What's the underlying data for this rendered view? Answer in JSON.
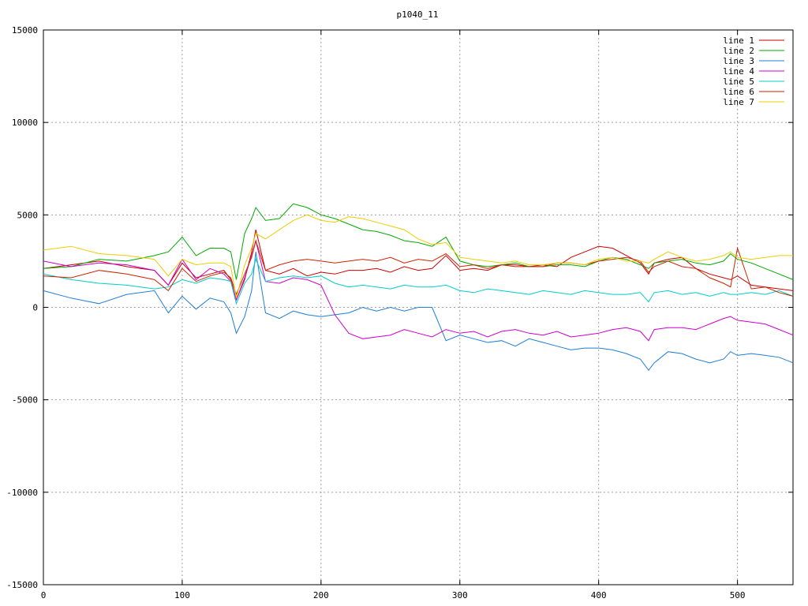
{
  "chart_data": {
    "type": "line",
    "title": "p1040_11",
    "xlabel": "",
    "ylabel": "",
    "xlim": [
      0,
      540
    ],
    "ylim": [
      -15000,
      15000
    ],
    "x_ticks": [
      0,
      100,
      200,
      300,
      400,
      500
    ],
    "y_ticks": [
      -15000,
      -10000,
      -5000,
      0,
      5000,
      10000,
      15000
    ],
    "grid": true,
    "legend_position": "top-right",
    "x": [
      0,
      20,
      40,
      60,
      80,
      90,
      100,
      110,
      120,
      130,
      135,
      139,
      145,
      150,
      153,
      160,
      170,
      180,
      190,
      200,
      210,
      220,
      230,
      240,
      250,
      260,
      270,
      280,
      290,
      300,
      310,
      320,
      330,
      340,
      350,
      360,
      370,
      380,
      390,
      400,
      410,
      420,
      430,
      436,
      440,
      450,
      460,
      470,
      480,
      490,
      495,
      500,
      510,
      520,
      530,
      540
    ],
    "series": [
      {
        "name": "line 1",
        "color": "#cc0000",
        "values": [
          2100,
          2300,
          2500,
          2200,
          2000,
          1200,
          2400,
          1600,
          1800,
          2000,
          1500,
          400,
          1500,
          3000,
          4200,
          2000,
          1800,
          2100,
          1700,
          1900,
          1800,
          2000,
          2000,
          2100,
          1900,
          2200,
          2000,
          2100,
          2800,
          2000,
          2100,
          2000,
          2300,
          2300,
          2200,
          2300,
          2200,
          2700,
          3000,
          3300,
          3200,
          2800,
          2400,
          1800,
          2400,
          2600,
          2700,
          2100,
          1800,
          1600,
          1500,
          1700,
          1200,
          1100,
          1000,
          900
        ]
      },
      {
        "name": "line 2",
        "color": "#00aa00",
        "values": [
          2100,
          2200,
          2600,
          2500,
          2800,
          3000,
          3800,
          2800,
          3200,
          3200,
          3000,
          1500,
          4000,
          4800,
          5400,
          4700,
          4800,
          5600,
          5400,
          5000,
          4800,
          4500,
          4200,
          4100,
          3900,
          3600,
          3500,
          3300,
          3800,
          2500,
          2300,
          2200,
          2300,
          2400,
          2200,
          2200,
          2300,
          2300,
          2200,
          2500,
          2700,
          2600,
          2300,
          2100,
          2400,
          2500,
          2600,
          2400,
          2300,
          2500,
          2900,
          2600,
          2400,
          2100,
          1800,
          1500
        ]
      },
      {
        "name": "line 3",
        "color": "#1f7ed6",
        "values": [
          900,
          500,
          200,
          700,
          900,
          -300,
          600,
          -100,
          500,
          300,
          -300,
          -1400,
          -500,
          900,
          3000,
          -300,
          -600,
          -200,
          -400,
          -500,
          -400,
          -300,
          0,
          -200,
          0,
          -200,
          0,
          0,
          -1800,
          -1500,
          -1700,
          -1900,
          -1800,
          -2100,
          -1700,
          -1900,
          -2100,
          -2300,
          -2200,
          -2200,
          -2300,
          -2500,
          -2800,
          -3400,
          -3000,
          -2400,
          -2500,
          -2800,
          -3000,
          -2800,
          -2400,
          -2600,
          -2500,
          -2600,
          -2700,
          -3000
        ]
      },
      {
        "name": "line 4",
        "color": "#cc00cc",
        "values": [
          2500,
          2200,
          2400,
          2300,
          2000,
          1200,
          2600,
          1500,
          2100,
          1800,
          1400,
          400,
          1600,
          2800,
          3600,
          1400,
          1300,
          1600,
          1500,
          1200,
          -400,
          -1400,
          -1700,
          -1600,
          -1500,
          -1200,
          -1400,
          -1600,
          -1200,
          -1400,
          -1300,
          -1600,
          -1300,
          -1200,
          -1400,
          -1500,
          -1300,
          -1600,
          -1500,
          -1400,
          -1200,
          -1100,
          -1300,
          -1800,
          -1200,
          -1100,
          -1100,
          -1200,
          -900,
          -600,
          -500,
          -700,
          -800,
          -900,
          -1200,
          -1500
        ]
      },
      {
        "name": "line 5",
        "color": "#00cccc",
        "values": [
          1800,
          1500,
          1300,
          1200,
          1000,
          1100,
          1500,
          1300,
          1600,
          1500,
          1400,
          200,
          1300,
          1800,
          2600,
          1400,
          1600,
          1700,
          1600,
          1700,
          1300,
          1100,
          1200,
          1100,
          1000,
          1200,
          1100,
          1100,
          1200,
          900,
          800,
          1000,
          900,
          800,
          700,
          900,
          800,
          700,
          900,
          800,
          700,
          700,
          800,
          300,
          800,
          900,
          700,
          800,
          600,
          800,
          700,
          700,
          800,
          700,
          900,
          600
        ]
      },
      {
        "name": "line 6",
        "color": "#cc2200",
        "values": [
          1700,
          1600,
          2000,
          1800,
          1500,
          900,
          2100,
          1400,
          1700,
          1900,
          1600,
          700,
          1800,
          2700,
          3600,
          2000,
          2300,
          2500,
          2600,
          2500,
          2400,
          2500,
          2600,
          2500,
          2700,
          2400,
          2600,
          2500,
          2900,
          2200,
          2300,
          2100,
          2300,
          2200,
          2200,
          2200,
          2400,
          2400,
          2300,
          2500,
          2600,
          2700,
          2500,
          1900,
          2200,
          2500,
          2200,
          2100,
          1600,
          1300,
          1100,
          3200,
          1000,
          1100,
          800,
          600
        ]
      },
      {
        "name": "line 7",
        "color": "#eecc00",
        "values": [
          3100,
          3300,
          2900,
          2800,
          2600,
          1700,
          2600,
          2300,
          2400,
          2400,
          2200,
          500,
          2300,
          3200,
          4000,
          3700,
          4200,
          4700,
          5000,
          4700,
          4600,
          4900,
          4800,
          4600,
          4400,
          4200,
          3700,
          3400,
          3500,
          2700,
          2600,
          2500,
          2400,
          2500,
          2300,
          2300,
          2400,
          2400,
          2300,
          2600,
          2700,
          2500,
          2500,
          2400,
          2600,
          3000,
          2700,
          2500,
          2600,
          2800,
          3000,
          2700,
          2600,
          2700,
          2800,
          2800
        ]
      }
    ]
  }
}
